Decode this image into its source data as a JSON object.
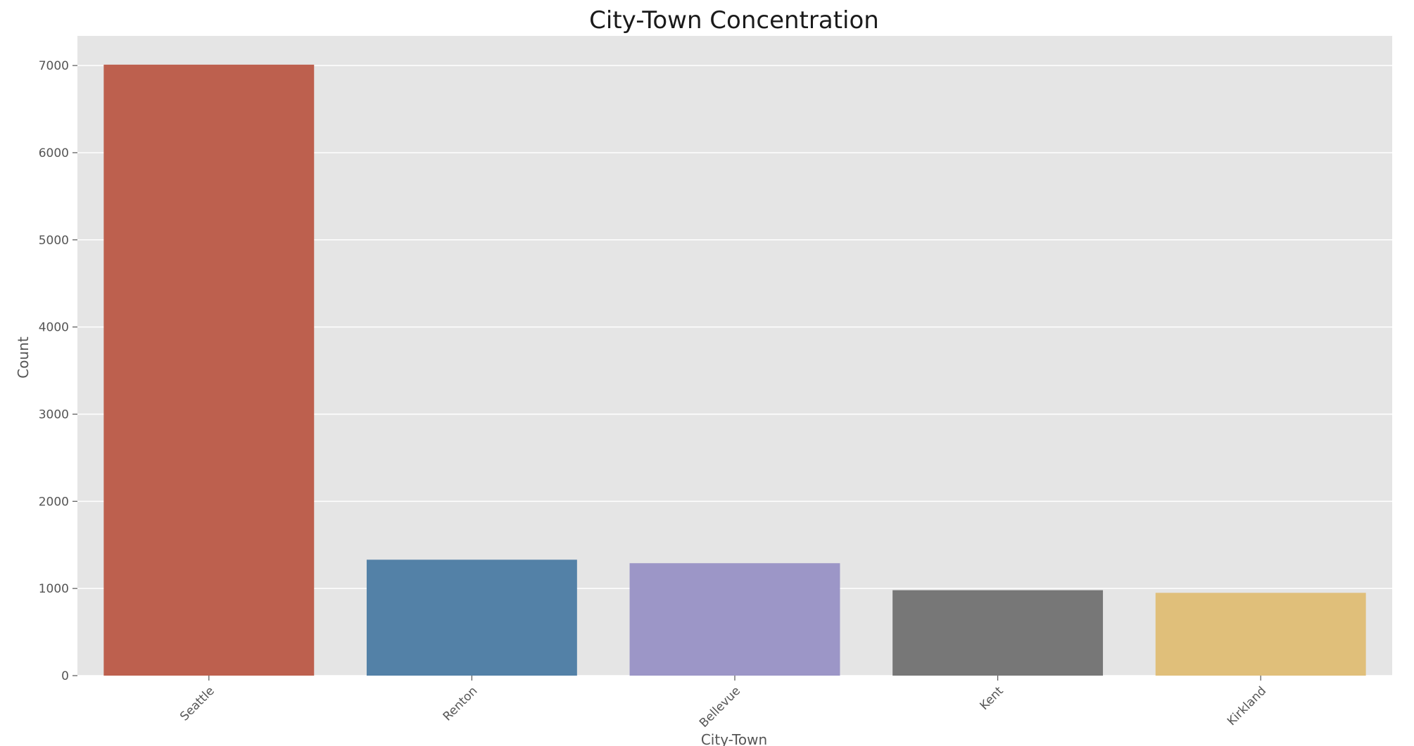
{
  "chart_data": {
    "type": "bar",
    "title": "City-Town Concentration",
    "xlabel": "City-Town",
    "ylabel": "Count",
    "categories": [
      "Seattle",
      "Renton",
      "Bellevue",
      "Kent",
      "Kirkland"
    ],
    "values": [
      7010,
      1330,
      1290,
      980,
      950
    ],
    "colors": [
      "#bd604e",
      "#5381a7",
      "#9c96c7",
      "#777777",
      "#e0bf7a"
    ],
    "ylim": [
      0,
      7340
    ],
    "yticks": [
      0,
      1000,
      2000,
      3000,
      4000,
      5000,
      6000,
      7000
    ],
    "grid": true,
    "plot_background": "#e5e5e5",
    "grid_color": "#ffffff"
  }
}
